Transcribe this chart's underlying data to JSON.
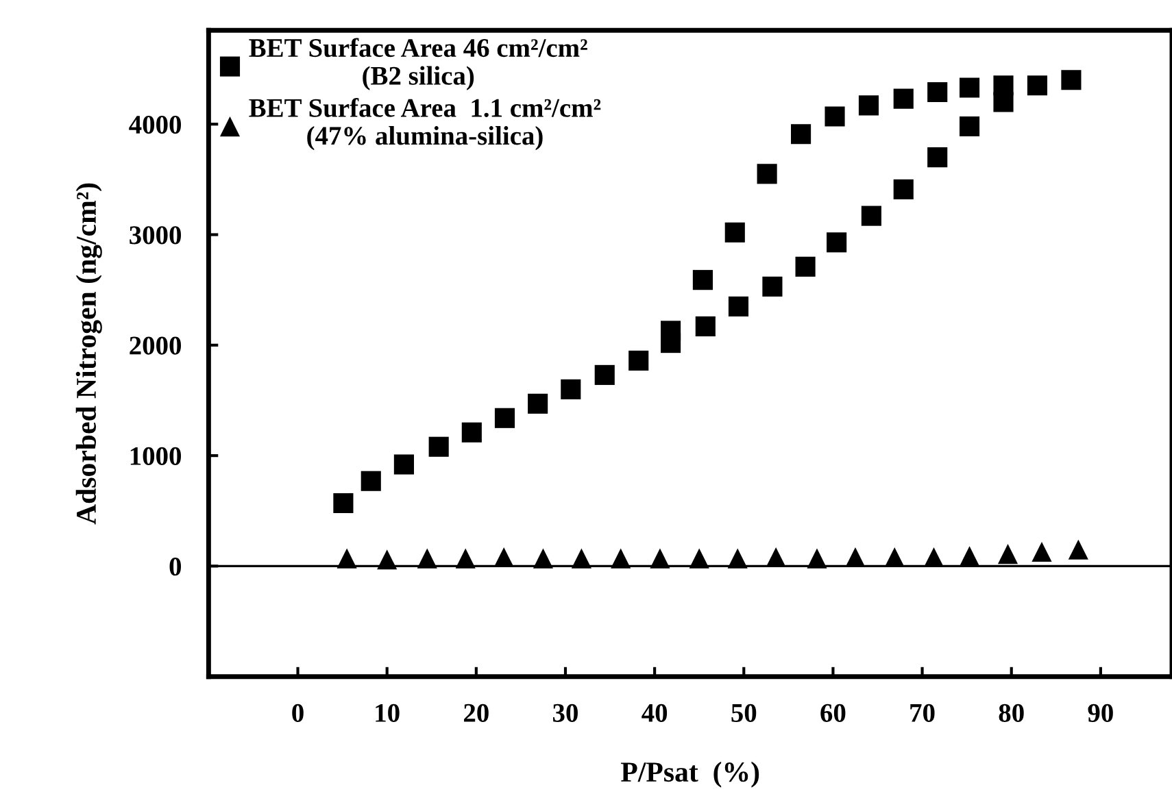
{
  "chart_data": {
    "type": "scatter",
    "xlabel": "P/Psat  (%)",
    "ylabel": "Adsorbed Nitrogen (ng/cm²)",
    "xlim": [
      -10,
      98
    ],
    "ylim": [
      -1000,
      4850
    ],
    "xticks": [
      0,
      10,
      20,
      30,
      40,
      50,
      60,
      70,
      80,
      90
    ],
    "yticks": [
      0,
      1000,
      2000,
      3000,
      4000
    ],
    "grid": false,
    "legend": "top left",
    "ref_lines": [
      {
        "axis": "y",
        "value": 0,
        "color": "#000000",
        "line_style": "solid"
      }
    ],
    "series": [
      {
        "name": "BET Surface Area 46 cm²/cm²\n(B2 silica)",
        "color": "#000000",
        "marker": "square",
        "x": [
          5.1,
          8.2,
          11.9,
          15.8,
          19.5,
          23.2,
          26.9,
          30.6,
          34.4,
          38.2,
          41.8,
          45.7,
          49.4,
          53.2,
          56.9,
          60.4,
          64.3,
          67.9,
          71.7,
          75.3,
          79.1,
          82.9,
          86.7,
          79.1,
          75.3,
          71.7,
          67.9,
          64.0,
          60.2,
          56.4,
          52.6,
          49.0,
          45.4,
          41.8
        ],
        "values": [
          570,
          770,
          920,
          1080,
          1210,
          1340,
          1470,
          1600,
          1730,
          1860,
          2020,
          2170,
          2350,
          2530,
          2710,
          2930,
          3170,
          3410,
          3700,
          3980,
          4200,
          4350,
          4400,
          4350,
          4330,
          4290,
          4230,
          4170,
          4070,
          3910,
          3550,
          3020,
          2590,
          2130
        ]
      },
      {
        "name": "BET Surface Area  1.1 cm²/cm²\n(47% alumina-silica)",
        "color": "#000000",
        "marker": "triangle",
        "x": [
          5.5,
          10,
          14.5,
          18.8,
          23.1,
          27.5,
          31.8,
          36.2,
          40.6,
          45,
          49.3,
          53.6,
          58.2,
          62.5,
          66.9,
          71.3,
          75.3,
          79.6,
          83.4,
          87.5
        ],
        "values": [
          70,
          60,
          70,
          70,
          80,
          70,
          70,
          70,
          70,
          70,
          70,
          80,
          70,
          80,
          80,
          80,
          90,
          110,
          130,
          150
        ]
      }
    ]
  }
}
